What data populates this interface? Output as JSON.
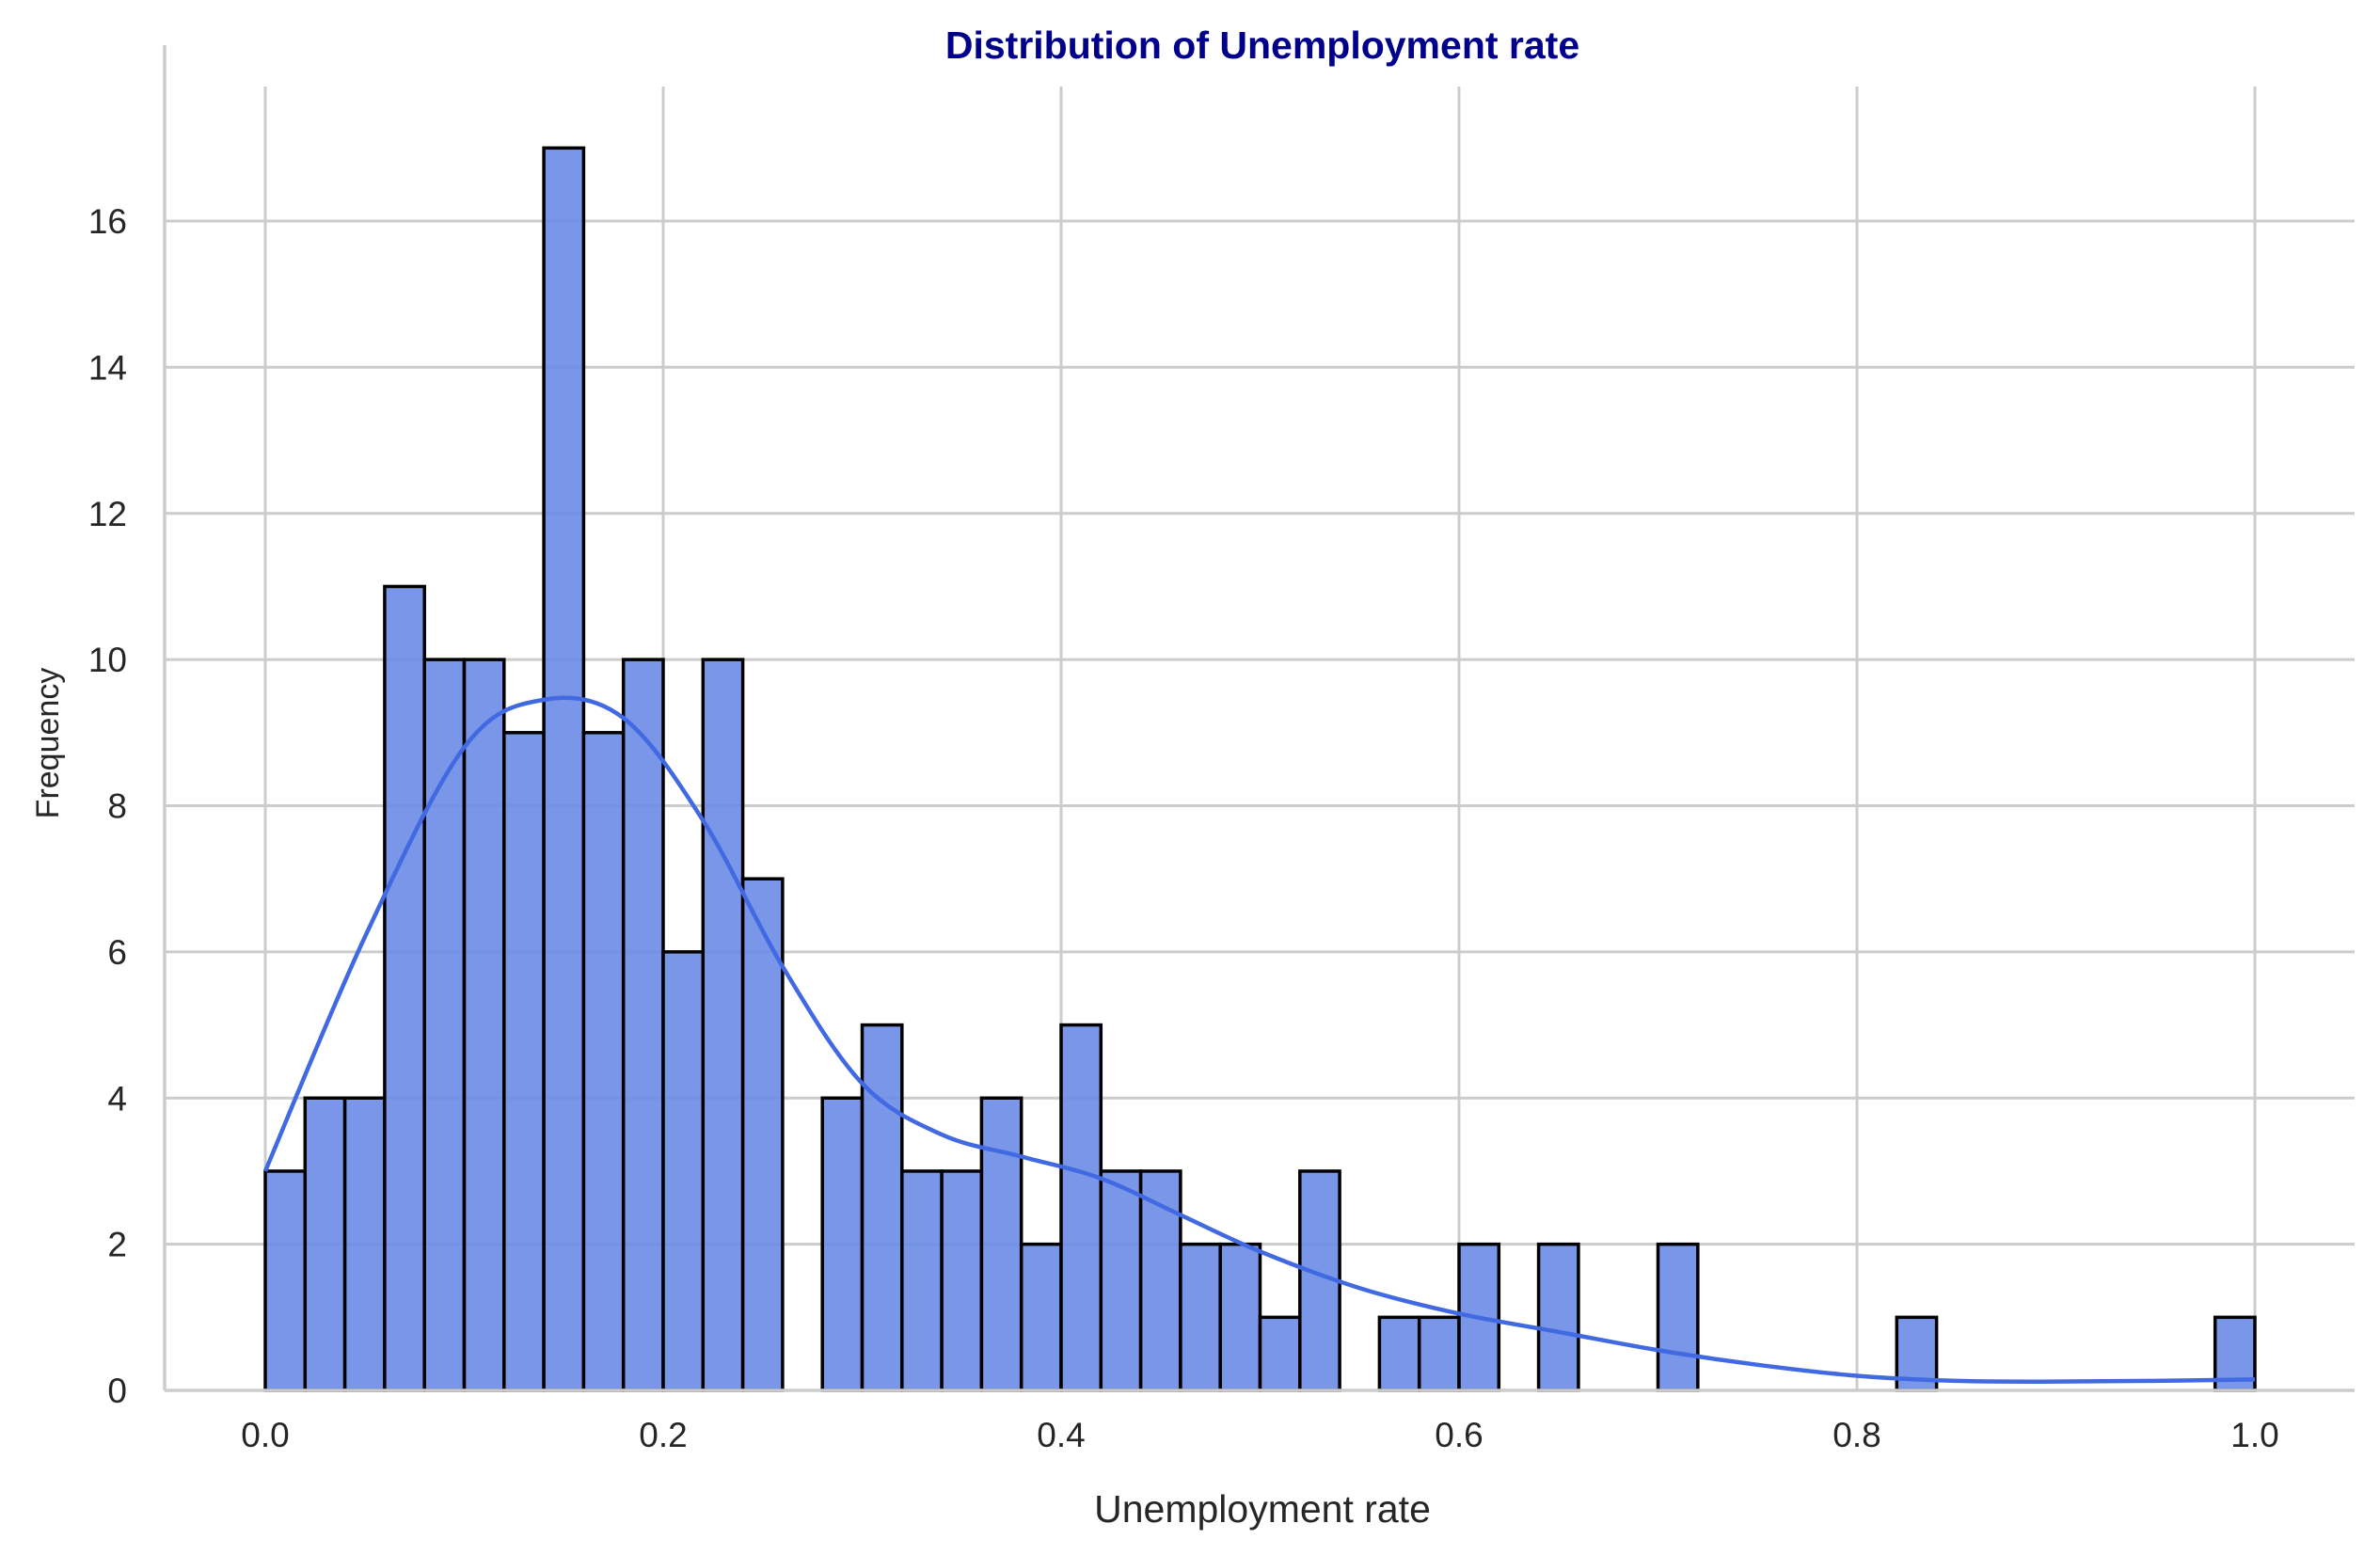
{
  "chart_data": {
    "type": "histogram",
    "title": "Distribution of Unemployment rate",
    "xlabel": "Unemployment rate",
    "ylabel": "Frequency",
    "xlim": [
      -0.05,
      1.05
    ],
    "ylim": [
      0,
      17.85
    ],
    "x_ticks": [
      0.0,
      0.2,
      0.4,
      0.6,
      0.8,
      1.0
    ],
    "x_tick_labels": [
      "0.0",
      "0.2",
      "0.4",
      "0.6",
      "0.8",
      "1.0"
    ],
    "y_ticks": [
      0,
      2,
      4,
      6,
      8,
      10,
      12,
      14,
      16
    ],
    "y_tick_labels": [
      "0",
      "2",
      "4",
      "6",
      "8",
      "10",
      "12",
      "14",
      "16"
    ],
    "grid": true,
    "bin_width": 0.02,
    "bin_start": 0.0,
    "counts": [
      3,
      4,
      4,
      11,
      10,
      10,
      9,
      17,
      9,
      10,
      6,
      10,
      7,
      0,
      4,
      5,
      3,
      3,
      4,
      2,
      5,
      3,
      3,
      2,
      2,
      1,
      3,
      0,
      1,
      1,
      2,
      0,
      2,
      0,
      0,
      2,
      0,
      0,
      0,
      0,
      0,
      1,
      0,
      0,
      0,
      0,
      0,
      0,
      0,
      1
    ],
    "kde": {
      "x": [
        0.0,
        0.05,
        0.1,
        0.14,
        0.18,
        0.22,
        0.26,
        0.3,
        0.34,
        0.38,
        0.42,
        0.46,
        0.5,
        0.55,
        0.6,
        0.65,
        0.7,
        0.75,
        0.8,
        0.85,
        0.9,
        0.95,
        1.0
      ],
      "y": [
        3.0,
        6.2,
        8.8,
        9.45,
        9.2,
        7.8,
        5.8,
        4.2,
        3.5,
        3.2,
        2.9,
        2.4,
        1.9,
        1.4,
        1.05,
        0.8,
        0.55,
        0.35,
        0.2,
        0.13,
        0.12,
        0.13,
        0.15
      ]
    },
    "colors": {
      "bar_fill": "#6a8be6",
      "bar_edge": "#000000",
      "kde_line": "#4169e1",
      "title": "#00008b",
      "grid": "#cccccc",
      "axis": "#cccccc"
    }
  }
}
